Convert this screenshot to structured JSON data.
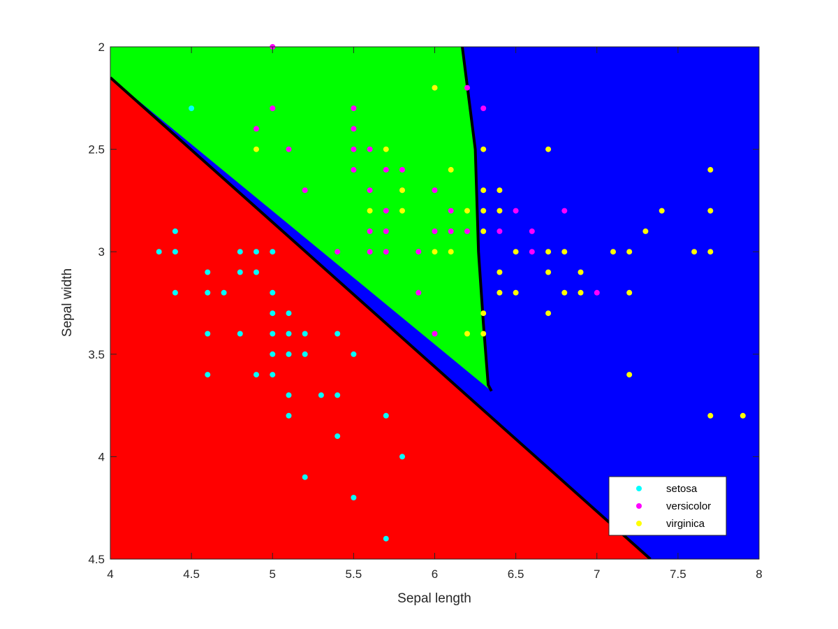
{
  "chart_data": {
    "type": "scatter",
    "title": "",
    "xlabel": "Sepal length",
    "ylabel": "Sepal width",
    "xlim": [
      4,
      8
    ],
    "ylim": [
      2,
      4.5
    ],
    "y_direction": "reversed",
    "xticks": [
      "4",
      "4.5",
      "5",
      "5.5",
      "6",
      "6.5",
      "7",
      "7.5",
      "8"
    ],
    "yticks": [
      "2",
      "2.5",
      "3",
      "3.5",
      "4",
      "4.5"
    ],
    "grid": false,
    "legend_position": "bottom-right",
    "regions": [
      {
        "name": "setosa",
        "color": "#ff0000"
      },
      {
        "name": "versicolor",
        "color": "#00ff00"
      },
      {
        "name": "virginica",
        "color": "#0000ff"
      }
    ],
    "boundaries": [
      {
        "between": [
          "setosa",
          "versicolor/virginica"
        ],
        "points": [
          [
            4.0,
            2.15
          ],
          [
            7.33,
            4.5
          ]
        ]
      },
      {
        "between": [
          "versicolor",
          "virginica"
        ],
        "points": [
          [
            6.17,
            2.0
          ],
          [
            6.25,
            2.5
          ],
          [
            6.27,
            3.0
          ],
          [
            6.3,
            3.35
          ],
          [
            6.33,
            3.65
          ],
          [
            6.35,
            3.68
          ]
        ]
      }
    ],
    "series": [
      {
        "name": "setosa",
        "color": "#00ffff",
        "points": [
          [
            4.5,
            2.3
          ],
          [
            4.3,
            3.0
          ],
          [
            4.4,
            2.9
          ],
          [
            4.4,
            3.0
          ],
          [
            4.4,
            3.2
          ],
          [
            4.6,
            3.1
          ],
          [
            4.6,
            3.2
          ],
          [
            4.7,
            3.2
          ],
          [
            4.6,
            3.4
          ],
          [
            4.6,
            3.6
          ],
          [
            4.8,
            3.0
          ],
          [
            4.8,
            3.1
          ],
          [
            4.8,
            3.4
          ],
          [
            4.9,
            3.0
          ],
          [
            4.9,
            3.1
          ],
          [
            4.9,
            3.6
          ],
          [
            5.0,
            3.0
          ],
          [
            5.0,
            3.2
          ],
          [
            5.0,
            3.3
          ],
          [
            5.0,
            3.4
          ],
          [
            5.0,
            3.5
          ],
          [
            5.0,
            3.6
          ],
          [
            5.1,
            3.3
          ],
          [
            5.1,
            3.4
          ],
          [
            5.1,
            3.5
          ],
          [
            5.1,
            3.7
          ],
          [
            5.1,
            3.8
          ],
          [
            5.2,
            3.4
          ],
          [
            5.2,
            3.5
          ],
          [
            5.2,
            4.1
          ],
          [
            5.3,
            3.7
          ],
          [
            5.4,
            3.4
          ],
          [
            5.4,
            3.7
          ],
          [
            5.4,
            3.9
          ],
          [
            5.5,
            3.5
          ],
          [
            5.5,
            4.2
          ],
          [
            5.7,
            3.8
          ],
          [
            5.7,
            4.4
          ],
          [
            5.8,
            4.0
          ]
        ]
      },
      {
        "name": "versicolor",
        "color": "#ff00ff",
        "points": [
          [
            5.0,
            2.0
          ],
          [
            5.0,
            2.3
          ],
          [
            4.9,
            2.4
          ],
          [
            5.1,
            2.5
          ],
          [
            5.2,
            2.7
          ],
          [
            5.4,
            3.0
          ],
          [
            5.5,
            2.3
          ],
          [
            5.5,
            2.4
          ],
          [
            5.5,
            2.5
          ],
          [
            5.5,
            2.6
          ],
          [
            5.6,
            2.5
          ],
          [
            5.6,
            2.7
          ],
          [
            5.6,
            2.9
          ],
          [
            5.6,
            3.0
          ],
          [
            5.7,
            2.6
          ],
          [
            5.7,
            2.8
          ],
          [
            5.7,
            2.9
          ],
          [
            5.7,
            3.0
          ],
          [
            5.8,
            2.6
          ],
          [
            5.8,
            2.7
          ],
          [
            5.9,
            3.0
          ],
          [
            5.9,
            3.2
          ],
          [
            6.0,
            2.2
          ],
          [
            6.0,
            2.7
          ],
          [
            6.0,
            2.9
          ],
          [
            6.0,
            3.4
          ],
          [
            6.1,
            2.8
          ],
          [
            6.1,
            2.9
          ],
          [
            6.2,
            2.2
          ],
          [
            6.2,
            2.9
          ],
          [
            6.3,
            2.3
          ],
          [
            6.4,
            2.9
          ],
          [
            6.5,
            2.8
          ],
          [
            6.6,
            2.9
          ],
          [
            6.6,
            3.0
          ],
          [
            6.8,
            2.8
          ],
          [
            7.0,
            3.2
          ]
        ]
      },
      {
        "name": "virginica",
        "color": "#ffff00",
        "points": [
          [
            4.9,
            2.5
          ],
          [
            5.6,
            2.8
          ],
          [
            5.7,
            2.5
          ],
          [
            5.8,
            2.7
          ],
          [
            5.8,
            2.8
          ],
          [
            6.0,
            2.2
          ],
          [
            6.0,
            3.0
          ],
          [
            6.1,
            2.6
          ],
          [
            6.1,
            3.0
          ],
          [
            6.2,
            2.8
          ],
          [
            6.2,
            3.4
          ],
          [
            6.3,
            2.5
          ],
          [
            6.3,
            2.7
          ],
          [
            6.3,
            2.8
          ],
          [
            6.3,
            2.9
          ],
          [
            6.3,
            3.3
          ],
          [
            6.3,
            3.4
          ],
          [
            6.4,
            2.7
          ],
          [
            6.4,
            2.8
          ],
          [
            6.4,
            3.1
          ],
          [
            6.4,
            3.2
          ],
          [
            6.5,
            3.0
          ],
          [
            6.5,
            3.2
          ],
          [
            6.7,
            2.5
          ],
          [
            6.7,
            3.0
          ],
          [
            6.7,
            3.1
          ],
          [
            6.7,
            3.3
          ],
          [
            6.8,
            3.0
          ],
          [
            6.8,
            3.2
          ],
          [
            6.9,
            3.1
          ],
          [
            6.9,
            3.2
          ],
          [
            7.1,
            3.0
          ],
          [
            7.2,
            3.0
          ],
          [
            7.2,
            3.2
          ],
          [
            7.2,
            3.6
          ],
          [
            7.3,
            2.9
          ],
          [
            7.4,
            2.8
          ],
          [
            7.6,
            3.0
          ],
          [
            7.7,
            2.6
          ],
          [
            7.7,
            2.8
          ],
          [
            7.7,
            3.0
          ],
          [
            7.7,
            3.8
          ],
          [
            7.9,
            3.8
          ]
        ]
      }
    ]
  }
}
